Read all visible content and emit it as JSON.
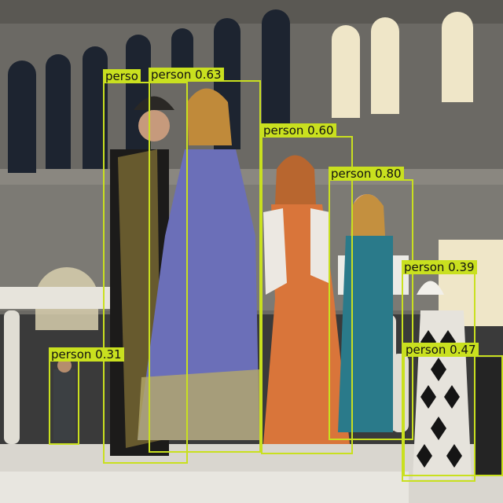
{
  "detections": [
    {
      "label": "perso",
      "class": "person",
      "score": ""
    },
    {
      "label": "person 0.63",
      "class": "person",
      "score": "0.63"
    },
    {
      "label": "person 0.60",
      "class": "person",
      "score": "0.60"
    },
    {
      "label": "person 0.80",
      "class": "person",
      "score": "0.80"
    },
    {
      "label": "person 0.39",
      "class": "person",
      "score": "0.39"
    },
    {
      "label": "person 0.47",
      "class": "person",
      "score": "0.47"
    },
    {
      "label": "person 0.31",
      "class": "person",
      "score": "0.31"
    }
  ],
  "colors": {
    "box": "#c9e01f",
    "building": "#6b6964",
    "stage": "#d9d6cf"
  }
}
